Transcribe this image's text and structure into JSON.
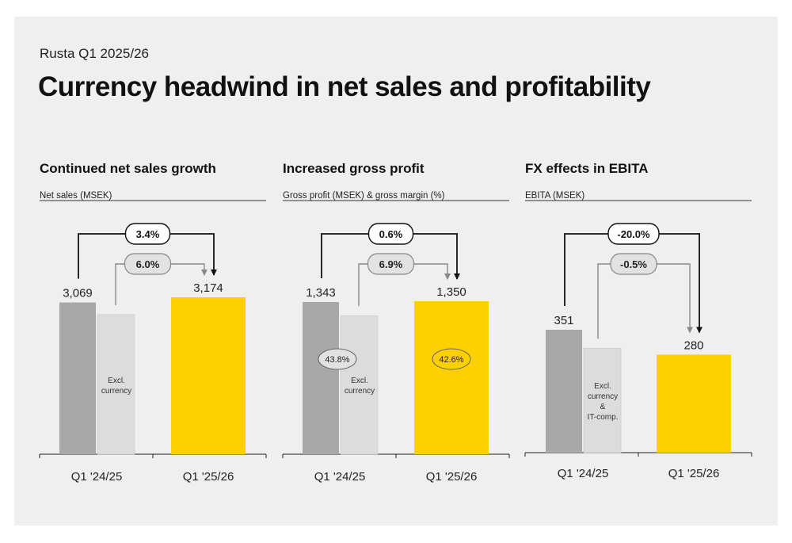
{
  "header": {
    "subtitle": "Rusta Q1 2025/26",
    "title": "Currency headwind in net sales and profitability"
  },
  "colors": {
    "background": "#efefef",
    "prior_bar": "#a8a8a8",
    "excl_bar": "#dcdcdc",
    "current_bar": "#ffd000",
    "pill_light": "#e2e2e2"
  },
  "chart_data": [
    {
      "type": "bar",
      "title": "Continued net sales growth",
      "ylabel": "Net sales (MSEK)",
      "categories": [
        "Q1 '24/25",
        "Q1 '25/26"
      ],
      "values": [
        3069,
        3174
      ],
      "value_labels": [
        "3,069",
        "3,174"
      ],
      "excl_bar": {
        "label": "Excl.\ncurrency",
        "ratio_to_prior": 0.92
      },
      "growth_total": "3.4%",
      "growth_excl": "6.0%",
      "margins": []
    },
    {
      "type": "bar",
      "title": "Increased gross profit",
      "ylabel": "Gross profit (MSEK) & gross margin (%)",
      "categories": [
        "Q1 '24/25",
        "Q1 '25/26"
      ],
      "values": [
        1343,
        1350
      ],
      "value_labels": [
        "1,343",
        "1,350"
      ],
      "excl_bar": {
        "label": "Excl.\ncurrency",
        "ratio_to_prior": 0.91
      },
      "growth_total": "0.6%",
      "growth_excl": "6.9%",
      "margins": [
        "43.8%",
        "42.6%"
      ]
    },
    {
      "type": "bar",
      "title": "FX effects in EBITA",
      "ylabel": "EBITA (MSEK)",
      "categories": [
        "Q1 '24/25",
        "Q1 '25/26"
      ],
      "values": [
        351,
        280
      ],
      "value_labels": [
        "351",
        "280"
      ],
      "excl_bar": {
        "label": "Excl.\ncurrency\n&\nIT-comp.",
        "ratio_to_prior": 0.85
      },
      "growth_total": "-20.0%",
      "growth_excl": "-0.5%",
      "margins": []
    }
  ]
}
